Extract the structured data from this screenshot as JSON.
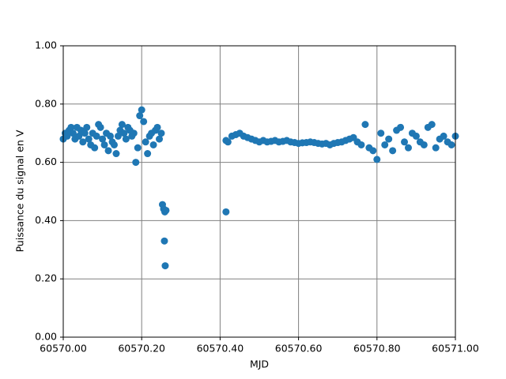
{
  "chart_data": {
    "type": "scatter",
    "x_label": "MJD",
    "y_label": "Puissance du signal en V",
    "xlim": [
      60570,
      60571
    ],
    "ylim": [
      0,
      1
    ],
    "xticks": [
      {
        "value": 60570,
        "label": "60570.00"
      },
      {
        "value": 60570.2,
        "label": "60570.20"
      },
      {
        "value": 60570.4,
        "label": "60570.40"
      },
      {
        "value": 60570.6,
        "label": "60570.60"
      },
      {
        "value": 60570.8,
        "label": "60570.80"
      },
      {
        "value": 60571,
        "label": "60571.00"
      }
    ],
    "yticks": [
      {
        "value": 0,
        "label": "0.00"
      },
      {
        "value": 0.2,
        "label": "0.20"
      },
      {
        "value": 0.4,
        "label": "0.40"
      },
      {
        "value": 0.6,
        "label": "0.60"
      },
      {
        "value": 0.8,
        "label": "0.80"
      },
      {
        "value": 1,
        "label": "1.00"
      }
    ],
    "grid": true,
    "series": [
      {
        "color": "#1f77b4",
        "x": [
          60570,
          60570.005,
          60570.01,
          60570.015,
          60570.02,
          60570.025,
          60570.03,
          60570.035,
          60570.04,
          60570.045,
          60570.05,
          60570.055,
          60570.06,
          60570.065,
          60570.07,
          60570.075,
          60570.08,
          60570.085,
          60570.09,
          60570.095,
          60570.1,
          60570.105,
          60570.11,
          60570.115,
          60570.12,
          60570.125,
          60570.13,
          60570.135,
          60570.14,
          60570.145,
          60570.15,
          60570.155,
          60570.16,
          60570.165,
          60570.17,
          60570.175,
          60570.18,
          60570.185,
          60570.19,
          60570.195,
          60570.2,
          60570.205,
          60570.21,
          60570.215,
          60570.22,
          60570.225,
          60570.23,
          60570.235,
          60570.24,
          60570.245,
          60570.25,
          60570.253,
          60570.256,
          60570.259,
          60570.258,
          60570.26,
          60570.262,
          60570.415,
          60570.415,
          60570.42,
          60570.43,
          60570.44,
          60570.45,
          60570.46,
          60570.47,
          60570.48,
          60570.49,
          60570.5,
          60570.51,
          60570.52,
          60570.53,
          60570.54,
          60570.55,
          60570.56,
          60570.57,
          60570.58,
          60570.59,
          60570.6,
          60570.61,
          60570.62,
          60570.63,
          60570.64,
          60570.65,
          60570.66,
          60570.67,
          60570.68,
          60570.69,
          60570.7,
          60570.71,
          60570.72,
          60570.73,
          60570.74,
          60570.75,
          60570.76,
          60570.77,
          60570.78,
          60570.79,
          60570.8,
          60570.81,
          60570.82,
          60570.83,
          60570.84,
          60570.85,
          60570.86,
          60570.87,
          60570.88,
          60570.89,
          60570.9,
          60570.91,
          60570.92,
          60570.93,
          60570.94,
          60570.95,
          60570.96,
          60570.97,
          60570.98,
          60570.99,
          60571
        ],
        "values": [
          0.68,
          0.7,
          0.69,
          0.71,
          0.72,
          0.7,
          0.68,
          0.72,
          0.69,
          0.71,
          0.67,
          0.7,
          0.72,
          0.68,
          0.66,
          0.7,
          0.65,
          0.69,
          0.73,
          0.72,
          0.68,
          0.66,
          0.7,
          0.64,
          0.69,
          0.67,
          0.66,
          0.63,
          0.69,
          0.71,
          0.73,
          0.7,
          0.68,
          0.72,
          0.71,
          0.69,
          0.7,
          0.6,
          0.65,
          0.76,
          0.78,
          0.74,
          0.67,
          0.63,
          0.69,
          0.7,
          0.66,
          0.71,
          0.72,
          0.68,
          0.7,
          0.455,
          0.44,
          0.43,
          0.33,
          0.245,
          0.435,
          0.43,
          0.675,
          0.67,
          0.69,
          0.695,
          0.7,
          0.69,
          0.685,
          0.68,
          0.675,
          0.67,
          0.675,
          0.67,
          0.672,
          0.675,
          0.67,
          0.672,
          0.675,
          0.67,
          0.668,
          0.665,
          0.667,
          0.668,
          0.67,
          0.668,
          0.665,
          0.663,
          0.665,
          0.66,
          0.665,
          0.668,
          0.67,
          0.675,
          0.68,
          0.685,
          0.67,
          0.66,
          0.73,
          0.65,
          0.64,
          0.61,
          0.7,
          0.66,
          0.68,
          0.64,
          0.71,
          0.72,
          0.67,
          0.65,
          0.7,
          0.69,
          0.67,
          0.66,
          0.72,
          0.73,
          0.65,
          0.68,
          0.69,
          0.67,
          0.66,
          0.69
        ]
      }
    ]
  }
}
